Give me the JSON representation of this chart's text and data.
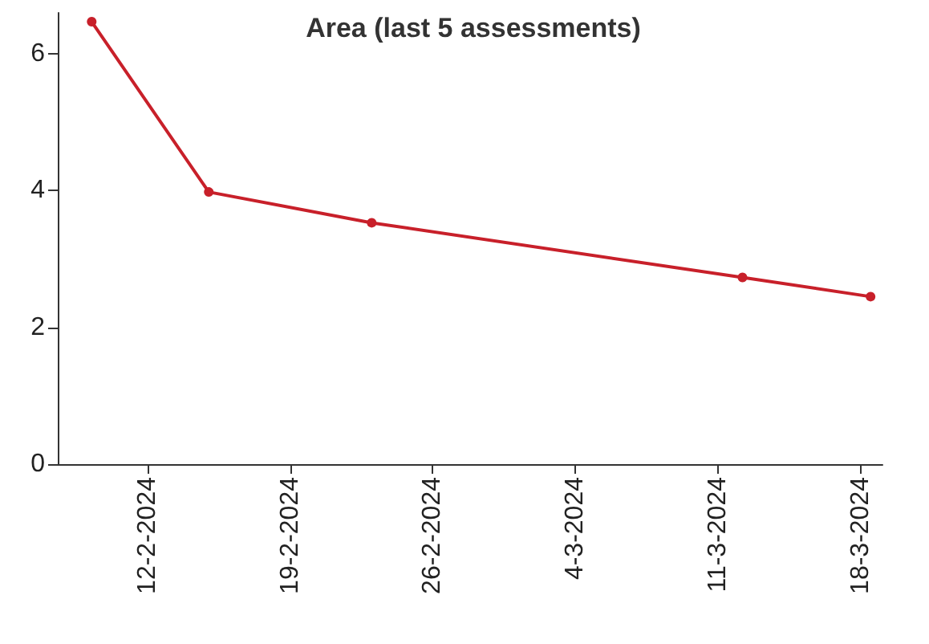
{
  "chart_data": {
    "type": "line",
    "title": "Area (last 5 assessments)",
    "x": [
      "2024-02-09T06:00",
      "2024-02-15",
      "2024-02-23",
      "2024-03-12T05:00",
      "2024-03-18T12:00"
    ],
    "series": [
      {
        "color": "#c8202a",
        "values": [
          6.47,
          3.98,
          3.53,
          2.73,
          2.45
        ]
      }
    ],
    "xlim": [
      "2024-02-07T14:00",
      "2024-03-19T02:00"
    ],
    "xticks": [
      {
        "value": "2024-02-12",
        "label": "12-2-2024"
      },
      {
        "value": "2024-02-19",
        "label": "19-2-2024"
      },
      {
        "value": "2024-02-26",
        "label": "26-2-2024"
      },
      {
        "value": "2024-03-04",
        "label": "4-3-2024"
      },
      {
        "value": "2024-03-11",
        "label": "11-3-2024"
      },
      {
        "value": "2024-03-18",
        "label": "18-3-2024"
      }
    ],
    "ylim": [
      0,
      6.6
    ],
    "yticks": [
      0,
      2,
      4,
      6
    ],
    "grid": false,
    "marker": "circle",
    "line_style": "solid"
  }
}
